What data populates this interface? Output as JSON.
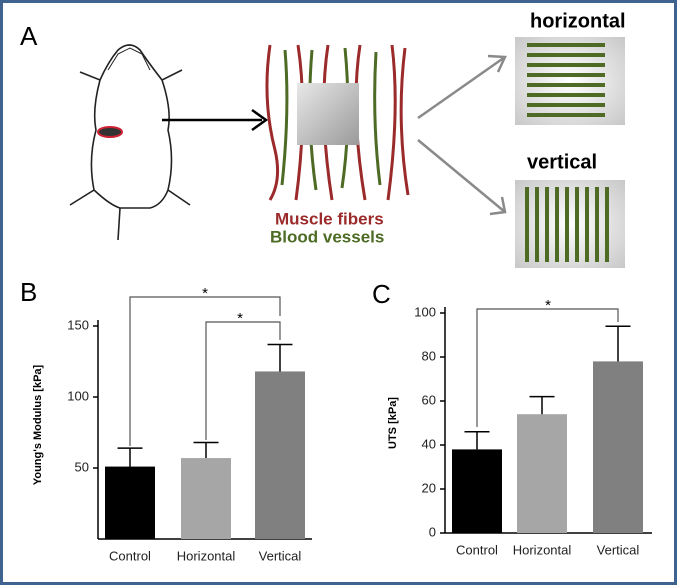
{
  "panel_labels": [
    "A",
    "B",
    "C"
  ],
  "diagram": {
    "horizontal_label": "horizontal",
    "vertical_label": "vertical",
    "legend": [
      "Muscle fibers",
      "Blood vessels"
    ]
  },
  "chart_data": [
    {
      "type": "bar",
      "ylabel": "Young's Modulus [kPa]",
      "categories": [
        "Control",
        "Horizontal",
        "Vertical"
      ],
      "values": [
        51,
        57,
        118
      ],
      "errors": [
        13,
        11,
        19
      ],
      "colors": [
        "#000000",
        "#a6a6a6",
        "#808080"
      ],
      "ylim": [
        0,
        150
      ],
      "yticks": [
        50,
        100,
        150
      ],
      "annotations": [
        "*",
        "*"
      ]
    },
    {
      "type": "bar",
      "ylabel": "UTS [kPa]",
      "categories": [
        "Control",
        "Horizontal",
        "Vertical"
      ],
      "values": [
        38,
        54,
        78
      ],
      "errors": [
        8,
        8,
        16
      ],
      "colors": [
        "#000000",
        "#a6a6a6",
        "#808080"
      ],
      "ylim": [
        0,
        100
      ],
      "yticks": [
        0,
        20,
        40,
        60,
        80,
        100
      ],
      "annotations": [
        "*"
      ]
    }
  ]
}
